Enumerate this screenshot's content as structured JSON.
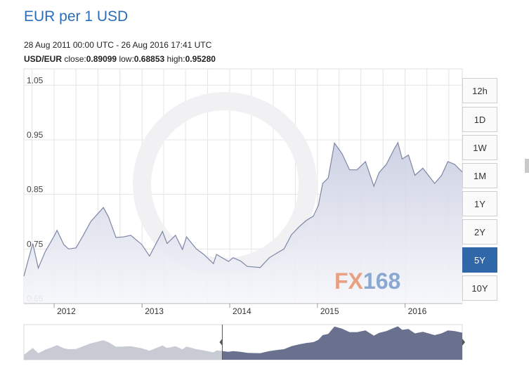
{
  "header": {
    "title": "EUR per 1 USD",
    "date_range": "28 Aug 2011 00:00 UTC - 26 Aug 2016 17:41 UTC",
    "pair_label": "USD/EUR",
    "close_label": "close:",
    "close_value": "0.89099",
    "low_label": "low:",
    "low_value": "0.68853",
    "high_label": "high:",
    "high_value": "0.95280"
  },
  "range_buttons": [
    "12h",
    "1D",
    "1W",
    "1M",
    "1Y",
    "2Y",
    "5Y",
    "10Y"
  ],
  "active_range": "5Y",
  "watermark": {
    "text_part1": "FX",
    "text_part2": "168",
    "color1": "#e8a080",
    "color2": "#8aa8d0"
  },
  "colors": {
    "line": "#7e86a6",
    "area_top": "#c9cde0",
    "area_bottom": "#f6f7fb",
    "grid": "#e4e4e4",
    "navigator_fill": "#69718f",
    "navigator_faded": "#c8cad4",
    "accent": "#2f67a8"
  },
  "chart_data": {
    "type": "area",
    "ylim": [
      0.65,
      1.08
    ],
    "y_ticks": [
      0.65,
      0.75,
      0.85,
      0.95,
      1.05
    ],
    "x_range": [
      "2011-08-28",
      "2016-08-26"
    ],
    "x_ticks": [
      "2012",
      "2013",
      "2014",
      "2015",
      "2016"
    ],
    "grid": true,
    "series": [
      {
        "x": [
          "2011-08-28",
          "2011-09-15",
          "2011-10-04",
          "2011-10-27",
          "2011-11-25",
          "2011-12-30",
          "2012-01-13",
          "2012-02-10",
          "2012-03-01",
          "2012-04-01",
          "2012-05-01",
          "2012-06-01",
          "2012-07-24",
          "2012-08-15",
          "2012-09-14",
          "2012-10-15",
          "2012-11-15",
          "2012-12-31",
          "2013-02-01",
          "2013-03-27",
          "2013-04-15",
          "2013-05-20",
          "2013-06-18",
          "2013-07-05",
          "2013-08-15",
          "2013-09-15",
          "2013-10-25",
          "2013-11-07",
          "2013-12-27",
          "2014-01-15",
          "2014-02-15",
          "2014-03-15",
          "2014-05-08",
          "2014-06-15",
          "2014-07-15",
          "2014-08-15",
          "2014-09-15",
          "2014-10-15",
          "2014-11-15",
          "2014-12-15",
          "2015-01-05",
          "2015-01-23",
          "2015-02-15",
          "2015-03-13",
          "2015-04-13",
          "2015-05-15",
          "2015-06-15",
          "2015-07-20",
          "2015-08-24",
          "2015-09-15",
          "2015-10-15",
          "2015-11-15",
          "2015-12-02",
          "2015-12-20",
          "2016-01-15",
          "2016-02-11",
          "2016-03-15",
          "2016-05-03",
          "2016-06-01",
          "2016-06-27",
          "2016-07-25",
          "2016-08-26"
        ],
        "y": [
          0.7,
          0.73,
          0.76,
          0.715,
          0.745,
          0.772,
          0.784,
          0.758,
          0.75,
          0.752,
          0.775,
          0.8,
          0.826,
          0.808,
          0.771,
          0.772,
          0.775,
          0.758,
          0.737,
          0.782,
          0.76,
          0.775,
          0.749,
          0.772,
          0.75,
          0.74,
          0.723,
          0.74,
          0.727,
          0.734,
          0.728,
          0.718,
          0.716,
          0.734,
          0.742,
          0.75,
          0.776,
          0.79,
          0.802,
          0.81,
          0.83,
          0.87,
          0.88,
          0.944,
          0.925,
          0.895,
          0.895,
          0.91,
          0.865,
          0.89,
          0.905,
          0.932,
          0.945,
          0.915,
          0.922,
          0.885,
          0.898,
          0.87,
          0.885,
          0.91,
          0.905,
          0.891
        ]
      }
    ]
  }
}
